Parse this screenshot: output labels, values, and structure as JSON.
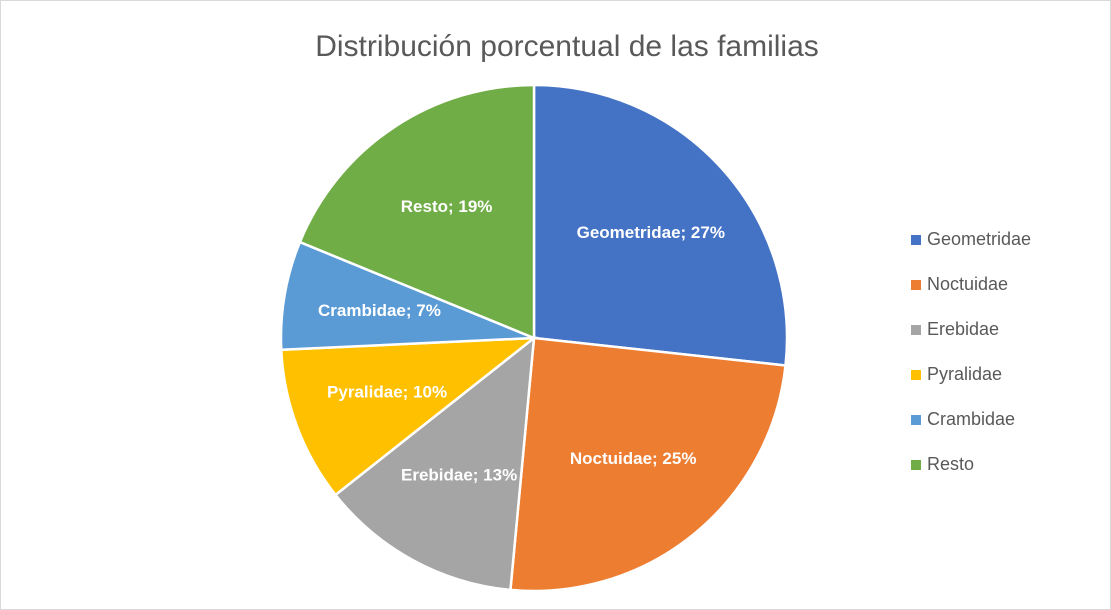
{
  "chart_data": {
    "type": "pie",
    "title": "Distribución porcentual de las familias",
    "categories": [
      "Geometridae",
      "Noctuidae",
      "Erebidae",
      "Pyralidae",
      "Crambidae",
      "Resto"
    ],
    "values": [
      27,
      25,
      13,
      10,
      7,
      19
    ],
    "value_labels": [
      "Geometridae; 27%",
      "Noctuidae; 25%",
      "Erebidae; 13%",
      "Pyralidae; 10%",
      "Crambidae; 7%",
      "Resto; 19%"
    ],
    "colors": [
      "#4472c4",
      "#ed7d31",
      "#a5a5a5",
      "#ffc000",
      "#5b9bd5",
      "#70ad47"
    ],
    "legend": "right"
  }
}
